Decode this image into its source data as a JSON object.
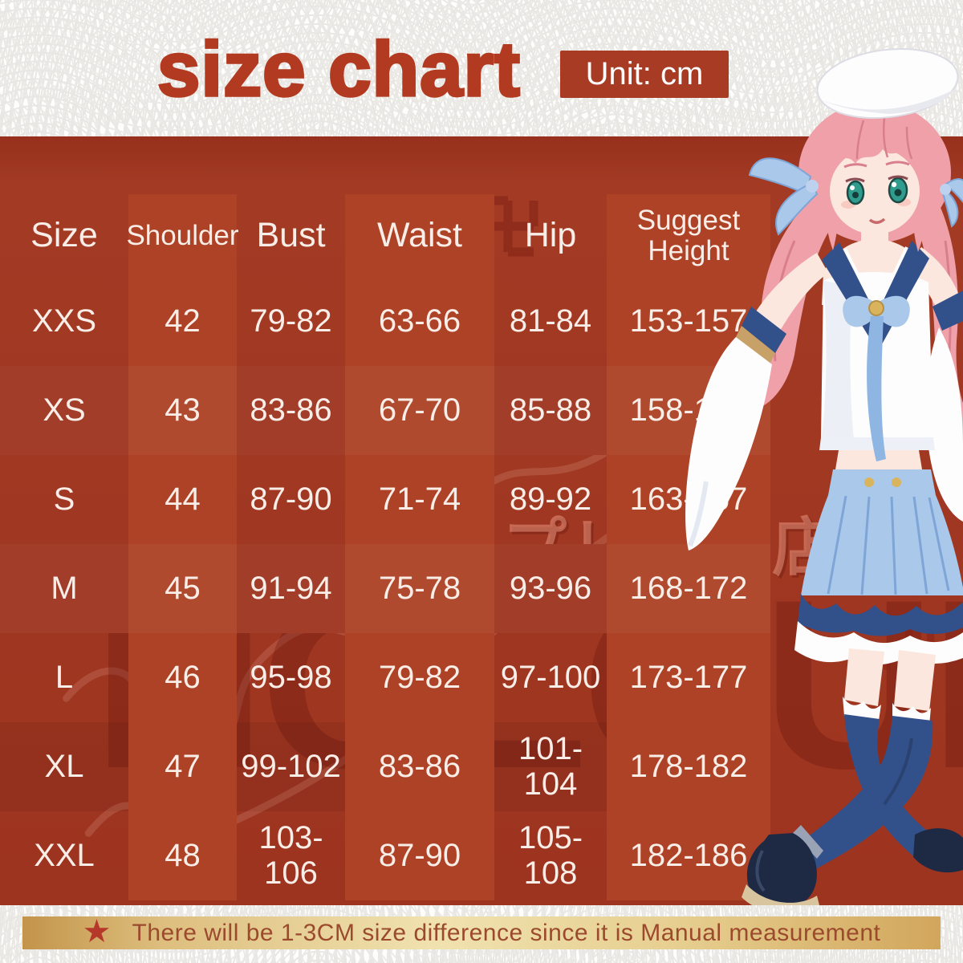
{
  "header": {
    "title": "size chart",
    "unit_label": "Unit: cm"
  },
  "chart_data": {
    "type": "table",
    "title": "size chart",
    "unit": "cm",
    "columns": [
      "Size",
      "Shoulder",
      "Bust",
      "Waist",
      "Hip",
      "Suggest Height"
    ],
    "rows": [
      [
        "XXS",
        "42",
        "79-82",
        "63-66",
        "81-84",
        "153-157"
      ],
      [
        "XS",
        "43",
        "83-86",
        "67-70",
        "85-88",
        "158-162"
      ],
      [
        "S",
        "44",
        "87-90",
        "71-74",
        "89-92",
        "163-167"
      ],
      [
        "M",
        "45",
        "91-94",
        "75-78",
        "93-96",
        "168-172"
      ],
      [
        "L",
        "46",
        "95-98",
        "79-82",
        "97-100",
        "173-177"
      ],
      [
        "XL",
        "47",
        "99-102",
        "83-86",
        "101-104",
        "178-182"
      ],
      [
        "XXL",
        "48",
        "103-106",
        "87-90",
        "105-108",
        "182-186"
      ]
    ],
    "note": "There will be 1-3CM size difference since it is Manual measurement"
  },
  "watermarks": {
    "shop_text": "コスプレ専門店",
    "brand_text": "HOLOUN",
    "manji_symbol": "manji"
  },
  "footer": {
    "star_icon": "★",
    "note": "There will be 1-3CM size difference since it is Manual measurement"
  },
  "colors": {
    "accent_red": "#B23A21",
    "table_bg_dark": "#9D341F",
    "table_cell_light": "#AD4226",
    "unit_box_bg": "#A83B24",
    "gold_bar": "#E6CE8F",
    "note_text": "#9C4A2E",
    "star_red": "#B5382A"
  }
}
